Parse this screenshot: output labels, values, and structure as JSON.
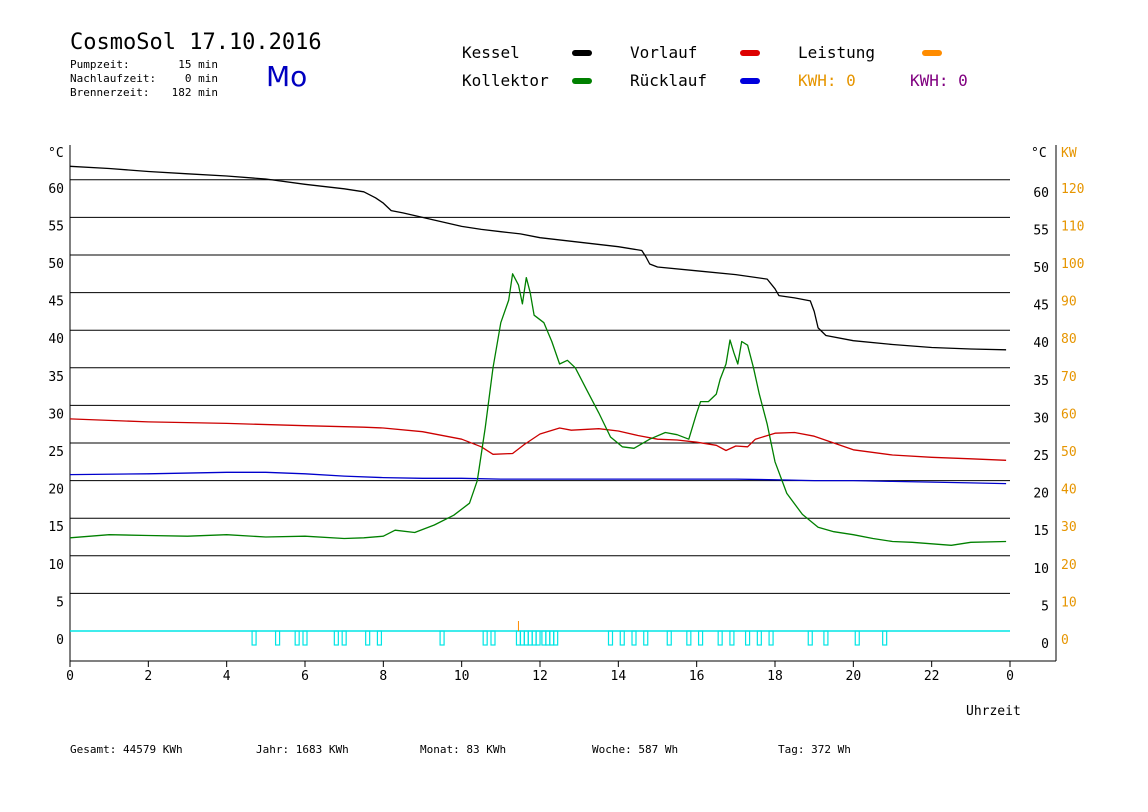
{
  "header": {
    "title": "CosmoSol 17.10.2016",
    "day": "Mo",
    "pump_label": "Pumpzeit:",
    "pump_value": "15 min",
    "nachlauf_label": "Nachlaufzeit:",
    "nachlauf_value": "0 min",
    "brenner_label": "Brennerzeit:",
    "brenner_value": "182 min"
  },
  "legend": {
    "kessel": "Kessel",
    "kollektor": "Kollektor",
    "vorlauf": "Vorlauf",
    "ruecklauf": "Rücklauf",
    "leistung": "Leistung",
    "kwh1": "KWH: 0",
    "kwh2": "KWH: 0"
  },
  "colors": {
    "kessel": "#000000",
    "kollektor": "#008000",
    "vorlauf": "#cc0000",
    "ruecklauf": "#0000cc",
    "leistung": "#ff8c00",
    "pump": "#00e5e5",
    "kwh2": "#800080",
    "kw_axis": "#e69500",
    "day": "#0000c0"
  },
  "footer": {
    "gesamt": "Gesamt:  44579 KWh",
    "jahr": "Jahr:  1683 KWh",
    "monat": "Monat:    83 KWh",
    "woche": "Woche:   587 Wh",
    "tag": "Tag:   372 Wh"
  },
  "chart_data": {
    "type": "line",
    "xlabel": "Uhrzeit",
    "y_unit_left": "°C",
    "y_unit_right_temp": "°C",
    "y_unit_right_power": "KW",
    "xlim": [
      0,
      24
    ],
    "ylim": [
      0,
      65
    ],
    "x_ticks": [
      "0",
      "2",
      "4",
      "6",
      "8",
      "10",
      "12",
      "14",
      "16",
      "18",
      "20",
      "22",
      "0"
    ],
    "y_ticks": [
      0,
      5,
      10,
      15,
      20,
      25,
      30,
      35,
      40,
      45,
      50,
      55,
      60
    ],
    "kw_ticks": [
      0,
      10,
      20,
      30,
      40,
      50,
      60,
      70,
      80,
      90,
      100,
      110,
      120
    ],
    "grid": true,
    "series": [
      {
        "name": "Kessel",
        "color": "#000000",
        "points": [
          [
            0,
            61.8
          ],
          [
            1,
            61.5
          ],
          [
            2,
            61.1
          ],
          [
            3,
            60.8
          ],
          [
            4,
            60.5
          ],
          [
            5,
            60.1
          ],
          [
            6,
            59.4
          ],
          [
            7,
            58.8
          ],
          [
            7.5,
            58.4
          ],
          [
            7.8,
            57.6
          ],
          [
            8,
            56.9
          ],
          [
            8.2,
            55.9
          ],
          [
            8.5,
            55.6
          ],
          [
            9,
            55
          ],
          [
            9.5,
            54.4
          ],
          [
            10,
            53.8
          ],
          [
            10.5,
            53.4
          ],
          [
            11,
            53.1
          ],
          [
            11.5,
            52.8
          ],
          [
            12,
            52.3
          ],
          [
            13,
            51.7
          ],
          [
            14,
            51.1
          ],
          [
            14.6,
            50.6
          ],
          [
            14.7,
            49.8
          ],
          [
            14.8,
            48.8
          ],
          [
            15,
            48.4
          ],
          [
            16,
            47.9
          ],
          [
            17,
            47.4
          ],
          [
            17.8,
            46.8
          ],
          [
            18,
            45.5
          ],
          [
            18.1,
            44.6
          ],
          [
            18.5,
            44.3
          ],
          [
            18.9,
            43.9
          ],
          [
            19,
            42.5
          ],
          [
            19.1,
            40.3
          ],
          [
            19.3,
            39.3
          ],
          [
            20,
            38.6
          ],
          [
            21,
            38.1
          ],
          [
            22,
            37.7
          ],
          [
            23,
            37.5
          ],
          [
            23.9,
            37.4
          ]
        ]
      },
      {
        "name": "Kollektor",
        "color": "#008000",
        "points": [
          [
            0,
            12.4
          ],
          [
            1,
            12.8
          ],
          [
            2,
            12.7
          ],
          [
            3,
            12.6
          ],
          [
            4,
            12.8
          ],
          [
            5,
            12.5
          ],
          [
            6,
            12.6
          ],
          [
            7,
            12.3
          ],
          [
            7.5,
            12.4
          ],
          [
            8,
            12.6
          ],
          [
            8.3,
            13.4
          ],
          [
            8.8,
            13.1
          ],
          [
            9.3,
            14.1
          ],
          [
            9.8,
            15.4
          ],
          [
            10.2,
            17
          ],
          [
            10.4,
            20
          ],
          [
            10.6,
            27
          ],
          [
            10.8,
            35
          ],
          [
            11,
            41
          ],
          [
            11.2,
            44
          ],
          [
            11.3,
            47.5
          ],
          [
            11.45,
            46
          ],
          [
            11.55,
            43.5
          ],
          [
            11.65,
            47
          ],
          [
            11.75,
            45
          ],
          [
            11.85,
            42
          ],
          [
            12.1,
            41
          ],
          [
            12.3,
            38.5
          ],
          [
            12.5,
            35.5
          ],
          [
            12.7,
            36
          ],
          [
            12.9,
            35
          ],
          [
            13.2,
            32
          ],
          [
            13.5,
            29
          ],
          [
            13.8,
            25.8
          ],
          [
            14.1,
            24.5
          ],
          [
            14.4,
            24.3
          ],
          [
            14.8,
            25.5
          ],
          [
            15.2,
            26.4
          ],
          [
            15.5,
            26.1
          ],
          [
            15.8,
            25.5
          ],
          [
            16,
            29
          ],
          [
            16.1,
            30.5
          ],
          [
            16.3,
            30.5
          ],
          [
            16.5,
            31.5
          ],
          [
            16.6,
            33.5
          ],
          [
            16.75,
            35.5
          ],
          [
            16.85,
            38.7
          ],
          [
            16.95,
            37
          ],
          [
            17.05,
            35.5
          ],
          [
            17.15,
            38.5
          ],
          [
            17.3,
            38
          ],
          [
            17.45,
            35
          ],
          [
            17.6,
            31.5
          ],
          [
            17.8,
            27.5
          ],
          [
            18,
            22.5
          ],
          [
            18.3,
            18.3
          ],
          [
            18.7,
            15.5
          ],
          [
            19.1,
            13.8
          ],
          [
            19.5,
            13.2
          ],
          [
            20,
            12.8
          ],
          [
            20.5,
            12.3
          ],
          [
            21,
            11.9
          ],
          [
            21.5,
            11.8
          ],
          [
            22,
            11.6
          ],
          [
            22.5,
            11.4
          ],
          [
            23,
            11.8
          ],
          [
            23.9,
            11.9
          ]
        ]
      },
      {
        "name": "Vorlauf",
        "color": "#cc0000",
        "points": [
          [
            0,
            28.2
          ],
          [
            2,
            27.8
          ],
          [
            4,
            27.6
          ],
          [
            6,
            27.3
          ],
          [
            7.5,
            27.1
          ],
          [
            8,
            27
          ],
          [
            9,
            26.5
          ],
          [
            10,
            25.5
          ],
          [
            10.5,
            24.5
          ],
          [
            10.8,
            23.5
          ],
          [
            11.3,
            23.6
          ],
          [
            11.6,
            24.8
          ],
          [
            12,
            26.2
          ],
          [
            12.5,
            27
          ],
          [
            12.8,
            26.7
          ],
          [
            13.5,
            26.9
          ],
          [
            14,
            26.6
          ],
          [
            14.5,
            26
          ],
          [
            15,
            25.5
          ],
          [
            15.5,
            25.4
          ],
          [
            16,
            25.1
          ],
          [
            16.5,
            24.7
          ],
          [
            16.75,
            24
          ],
          [
            17,
            24.6
          ],
          [
            17.3,
            24.5
          ],
          [
            17.5,
            25.5
          ],
          [
            18,
            26.3
          ],
          [
            18.5,
            26.4
          ],
          [
            19,
            25.9
          ],
          [
            19.5,
            25
          ],
          [
            20,
            24.1
          ],
          [
            21,
            23.4
          ],
          [
            22,
            23.1
          ],
          [
            23,
            22.9
          ],
          [
            23.9,
            22.7
          ]
        ]
      },
      {
        "name": "Rücklauf",
        "color": "#0000cc",
        "points": [
          [
            0,
            20.8
          ],
          [
            2,
            20.9
          ],
          [
            4,
            21.1
          ],
          [
            5,
            21.1
          ],
          [
            6,
            20.9
          ],
          [
            7,
            20.6
          ],
          [
            8,
            20.4
          ],
          [
            9,
            20.3
          ],
          [
            10,
            20.3
          ],
          [
            11,
            20.2
          ],
          [
            12,
            20.2
          ],
          [
            13,
            20.2
          ],
          [
            14,
            20.2
          ],
          [
            15,
            20.2
          ],
          [
            16,
            20.2
          ],
          [
            17,
            20.2
          ],
          [
            18,
            20.1
          ],
          [
            19,
            20
          ],
          [
            20,
            20
          ],
          [
            21,
            19.9
          ],
          [
            22,
            19.8
          ],
          [
            23,
            19.7
          ],
          [
            23.9,
            19.6
          ]
        ]
      }
    ],
    "pump_events": [
      4.7,
      5.3,
      5.8,
      6.0,
      6.8,
      7.0,
      7.6,
      7.9,
      9.5,
      10.6,
      10.8,
      11.45,
      11.55,
      11.65,
      11.75,
      11.85,
      11.95,
      12.1,
      12.2,
      12.3,
      12.4,
      13.8,
      14.1,
      14.4,
      14.7,
      15.3,
      15.8,
      16.1,
      16.6,
      16.9,
      17.3,
      17.6,
      17.9,
      18.9,
      19.3,
      20.1,
      20.8
    ]
  }
}
